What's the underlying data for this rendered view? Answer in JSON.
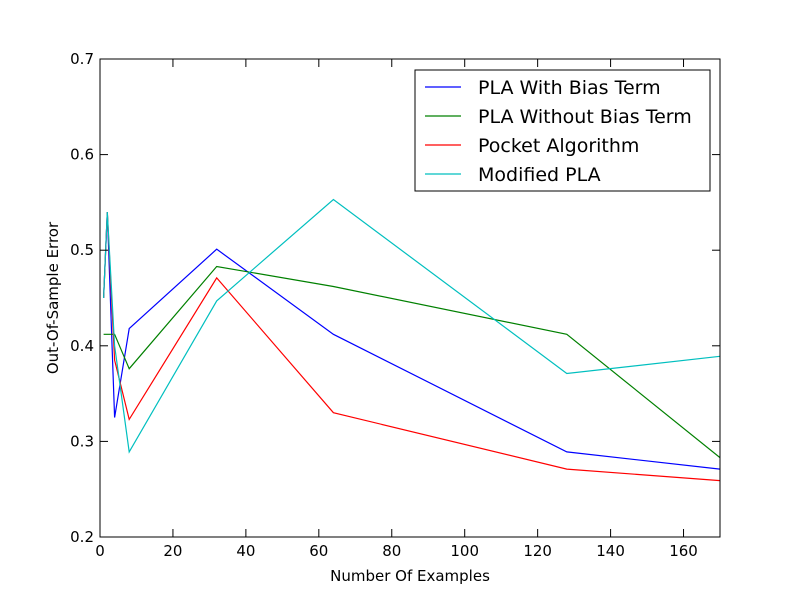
{
  "chart_data": {
    "type": "line",
    "xlabel": "Number Of Examples",
    "ylabel": "Out-Of-Sample Error",
    "xlim": [
      0,
      170
    ],
    "ylim": [
      0.2,
      0.7
    ],
    "xticks": [
      0,
      20,
      40,
      60,
      80,
      100,
      120,
      140,
      160
    ],
    "yticks": [
      0.2,
      0.3,
      0.4,
      0.5,
      0.6,
      0.7
    ],
    "x": [
      1,
      2,
      4,
      8,
      32,
      64,
      128,
      170
    ],
    "grid": false,
    "legend_position": "top-right",
    "series": [
      {
        "name": "PLA With Bias Term",
        "color": "#0000ff",
        "values": [
          0.45,
          0.54,
          0.325,
          0.418,
          0.501,
          0.412,
          0.289,
          0.271
        ]
      },
      {
        "name": "PLA Without Bias Term",
        "color": "#008000",
        "values": [
          0.412,
          0.412,
          0.412,
          0.376,
          0.483,
          0.462,
          0.412,
          0.283
        ]
      },
      {
        "name": "Pocket Algorithm",
        "color": "#ff0000",
        "values": [
          0.45,
          0.54,
          0.385,
          0.323,
          0.471,
          0.33,
          0.271,
          0.259
        ]
      },
      {
        "name": "Modified PLA",
        "color": "#00bfbf",
        "values": [
          0.45,
          0.54,
          0.4,
          0.289,
          0.447,
          0.553,
          0.371,
          0.389
        ]
      }
    ]
  }
}
